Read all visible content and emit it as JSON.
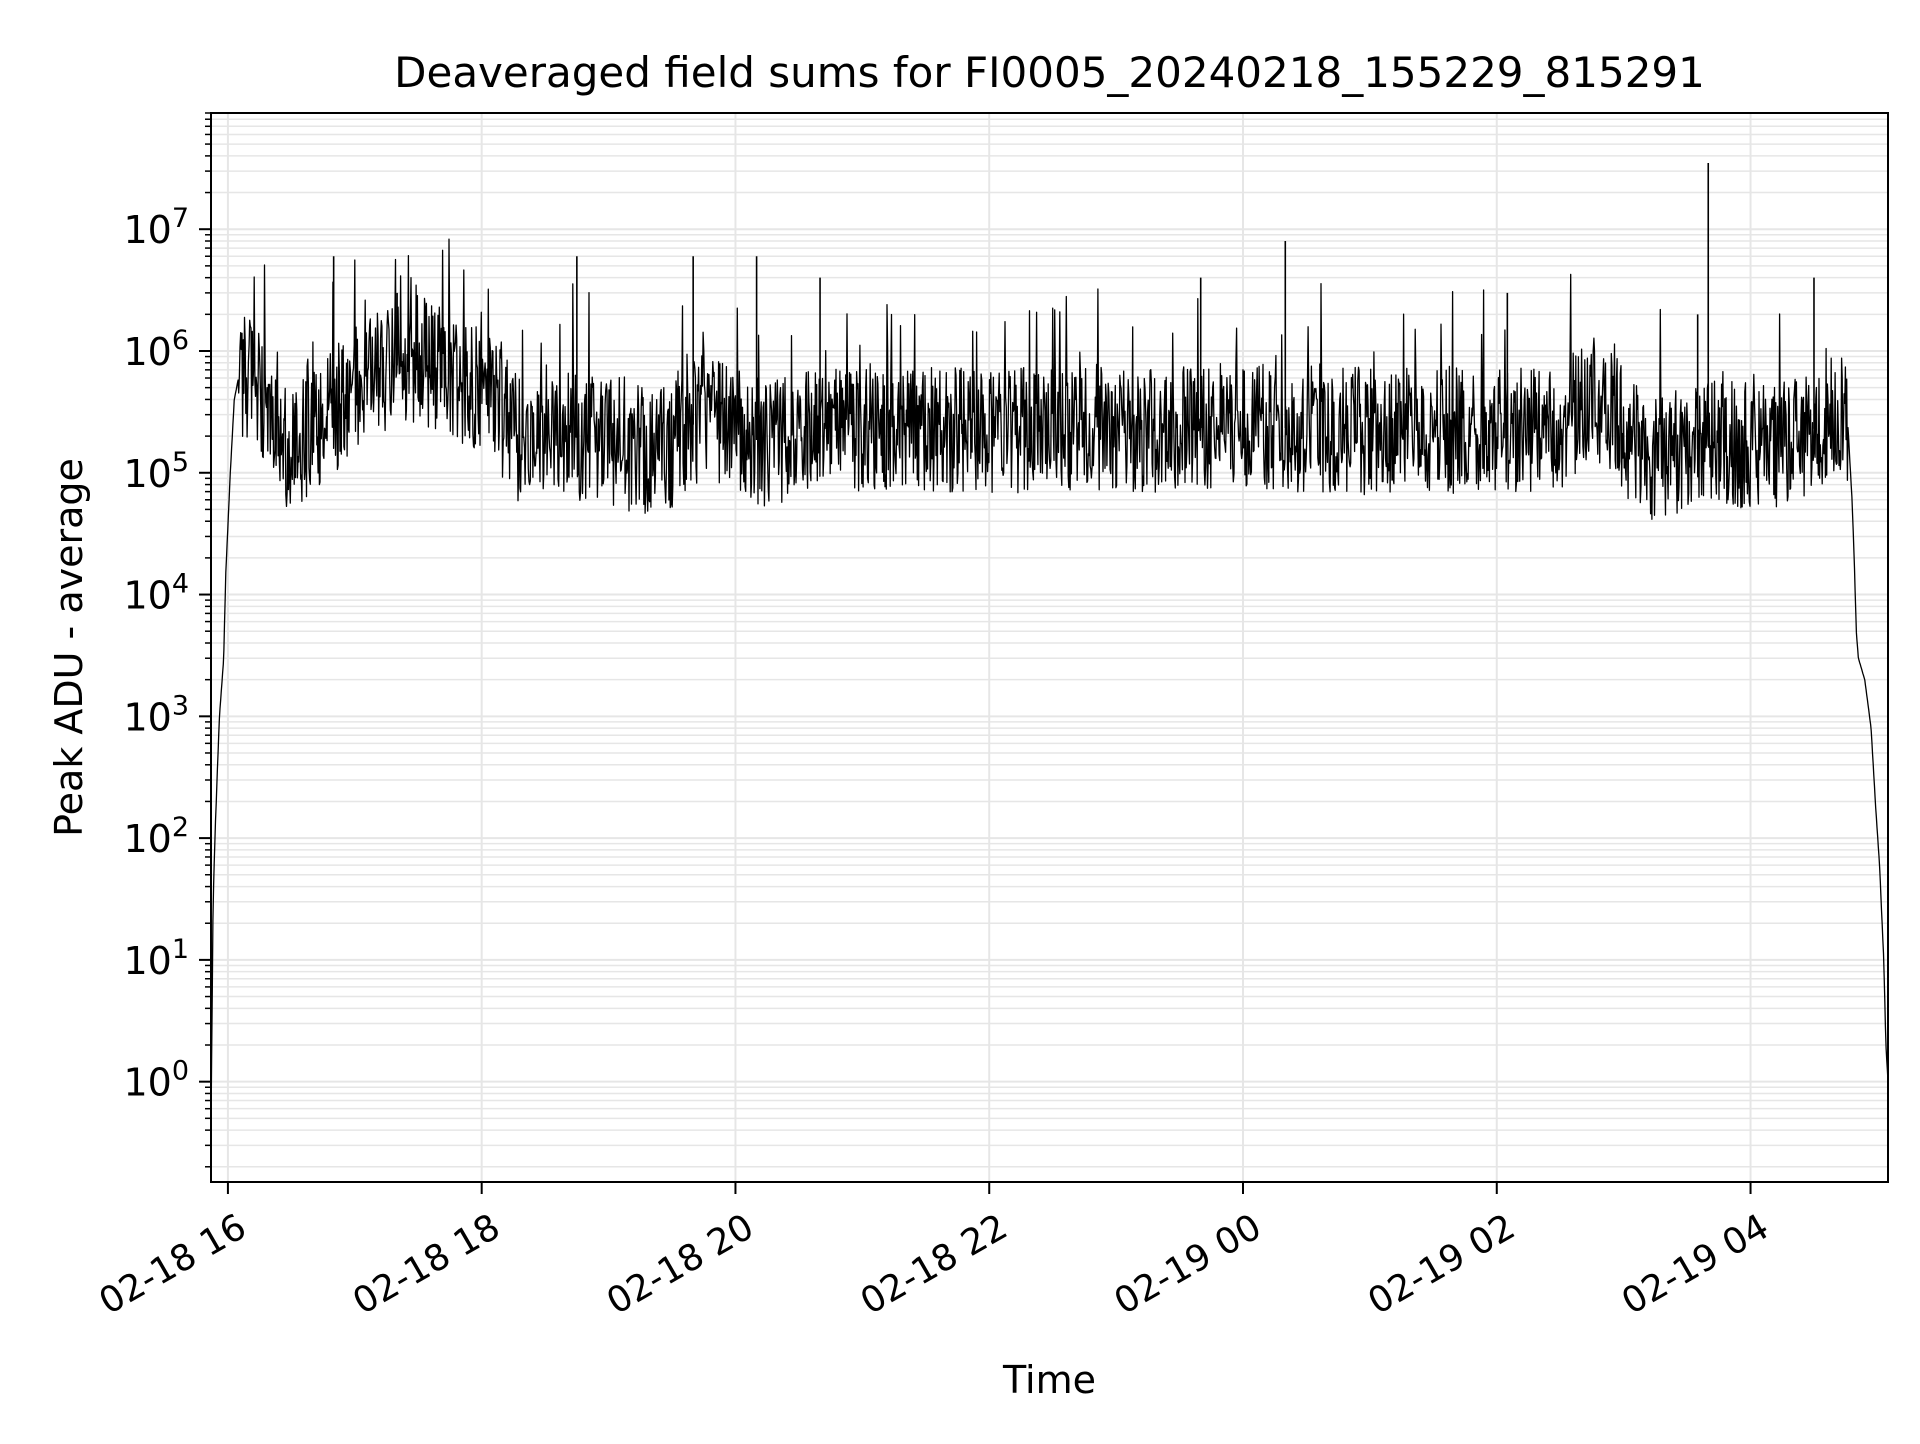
{
  "chart_data": {
    "type": "line",
    "title": "Deaveraged field sums for FI0005_20240218_155229_815291",
    "xlabel": "Time",
    "ylabel": "Peak ADU - average",
    "yscale": "log",
    "xlim": [
      "2024-02-18 15:52",
      "2024-02-19 05:05"
    ],
    "ylim": [
      0.15,
      90000000
    ],
    "grid": true,
    "grid_color": "#e6e6e6",
    "line_color": "#000000",
    "x_ticks": [
      {
        "value": "2024-02-18 16:00",
        "label": "02-18 16"
      },
      {
        "value": "2024-02-18 18:00",
        "label": "02-18 18"
      },
      {
        "value": "2024-02-18 20:00",
        "label": "02-18 20"
      },
      {
        "value": "2024-02-18 22:00",
        "label": "02-18 22"
      },
      {
        "value": "2024-02-19 00:00",
        "label": "02-19 00"
      },
      {
        "value": "2024-02-19 02:00",
        "label": "02-19 02"
      },
      {
        "value": "2024-02-19 04:00",
        "label": "02-19 04"
      }
    ],
    "y_ticks": [
      {
        "value": 1,
        "base": "10",
        "exp": "0"
      },
      {
        "value": 10,
        "base": "10",
        "exp": "1"
      },
      {
        "value": 100,
        "base": "10",
        "exp": "2"
      },
      {
        "value": 1000,
        "base": "10",
        "exp": "3"
      },
      {
        "value": 10000,
        "base": "10",
        "exp": "4"
      },
      {
        "value": 100000,
        "base": "10",
        "exp": "5"
      },
      {
        "value": 1000000,
        "base": "10",
        "exp": "6"
      },
      {
        "value": 10000000,
        "base": "10",
        "exp": "7"
      }
    ],
    "series": [
      {
        "points": [
          [
            "2024-02-18 15:52",
            0.4
          ],
          [
            "2024-02-18 15:53",
            30
          ],
          [
            "2024-02-18 15:54",
            120
          ],
          [
            "2024-02-18 15:55",
            350
          ],
          [
            "2024-02-18 15:56",
            1000
          ],
          [
            "2024-02-18 15:58",
            3000
          ],
          [
            "2024-02-18 15:59",
            15000
          ],
          [
            "2024-02-18 16:01",
            90000
          ],
          [
            "2024-02-18 16:03",
            400000
          ],
          [
            "2024-02-18 16:05",
            600000
          ],
          [
            "2024-02-18 16:08",
            650000
          ],
          [
            "2024-02-18 16:12",
            550000
          ],
          [
            "2024-02-18 16:20",
            300000
          ],
          [
            "2024-02-18 16:30",
            150000
          ],
          [
            "2024-02-18 16:45",
            250000
          ],
          [
            "2024-02-18 17:00",
            500000
          ],
          [
            "2024-02-18 17:15",
            700000
          ],
          [
            "2024-02-18 17:30",
            900000
          ],
          [
            "2024-02-18 17:45",
            600000
          ],
          [
            "2024-02-18 18:00",
            500000
          ],
          [
            "2024-02-18 18:10",
            300000
          ],
          [
            "2024-02-18 18:20",
            150000
          ],
          [
            "2024-02-18 18:30",
            250000
          ],
          [
            "2024-02-18 18:45",
            200000
          ],
          [
            "2024-02-18 19:00",
            180000
          ],
          [
            "2024-02-18 19:15",
            150000
          ],
          [
            "2024-02-18 19:30",
            170000
          ],
          [
            "2024-02-18 19:45",
            300000
          ],
          [
            "2024-02-18 20:00",
            250000
          ],
          [
            "2024-02-18 20:15",
            160000
          ],
          [
            "2024-02-18 20:30",
            220000
          ],
          [
            "2024-02-18 21:00",
            230000
          ],
          [
            "2024-02-18 21:30",
            220000
          ],
          [
            "2024-02-18 22:00",
            220000
          ],
          [
            "2024-02-18 22:30",
            230000
          ],
          [
            "2024-02-18 23:00",
            220000
          ],
          [
            "2024-02-18 23:30",
            230000
          ],
          [
            "2024-02-19 00:00",
            240000
          ],
          [
            "2024-02-19 00:30",
            230000
          ],
          [
            "2024-02-19 01:00",
            220000
          ],
          [
            "2024-02-19 01:30",
            230000
          ],
          [
            "2024-02-19 02:00",
            220000
          ],
          [
            "2024-02-19 02:30",
            230000
          ],
          [
            "2024-02-19 02:45",
            400000
          ],
          [
            "2024-02-19 02:55",
            300000
          ],
          [
            "2024-02-19 03:10",
            130000
          ],
          [
            "2024-02-19 03:30",
            150000
          ],
          [
            "2024-02-19 03:50",
            180000
          ],
          [
            "2024-02-19 04:10",
            150000
          ],
          [
            "2024-02-19 04:30",
            230000
          ],
          [
            "2024-02-19 04:42",
            330000
          ],
          [
            "2024-02-19 04:46",
            250000
          ],
          [
            "2024-02-19 04:48",
            60000
          ],
          [
            "2024-02-19 04:49",
            20000
          ],
          [
            "2024-02-19 04:50",
            5000
          ],
          [
            "2024-02-19 04:51",
            3000
          ],
          [
            "2024-02-19 04:54",
            2000
          ],
          [
            "2024-02-19 04:57",
            800
          ],
          [
            "2024-02-19 04:59",
            200
          ],
          [
            "2024-02-19 05:01",
            60
          ],
          [
            "2024-02-19 05:03",
            10
          ],
          [
            "2024-02-19 05:04",
            2
          ],
          [
            "2024-02-19 05:05",
            1
          ]
        ],
        "peaks": [
          [
            "2024-02-18 16:50",
            6000000
          ],
          [
            "2024-02-18 17:20",
            3000000
          ],
          [
            "2024-02-18 18:45",
            6000000
          ],
          [
            "2024-02-18 19:40",
            6000000
          ],
          [
            "2024-02-18 20:10",
            6000000
          ],
          [
            "2024-02-18 20:40",
            4000000
          ],
          [
            "2024-02-18 23:40",
            4000000
          ],
          [
            "2024-02-19 00:20",
            8000000
          ],
          [
            "2024-02-19 02:05",
            3000000
          ],
          [
            "2024-02-19 03:35",
            2000000
          ],
          [
            "2024-02-19 03:40",
            35000000
          ],
          [
            "2024-02-19 04:30",
            4000000
          ]
        ]
      }
    ]
  }
}
